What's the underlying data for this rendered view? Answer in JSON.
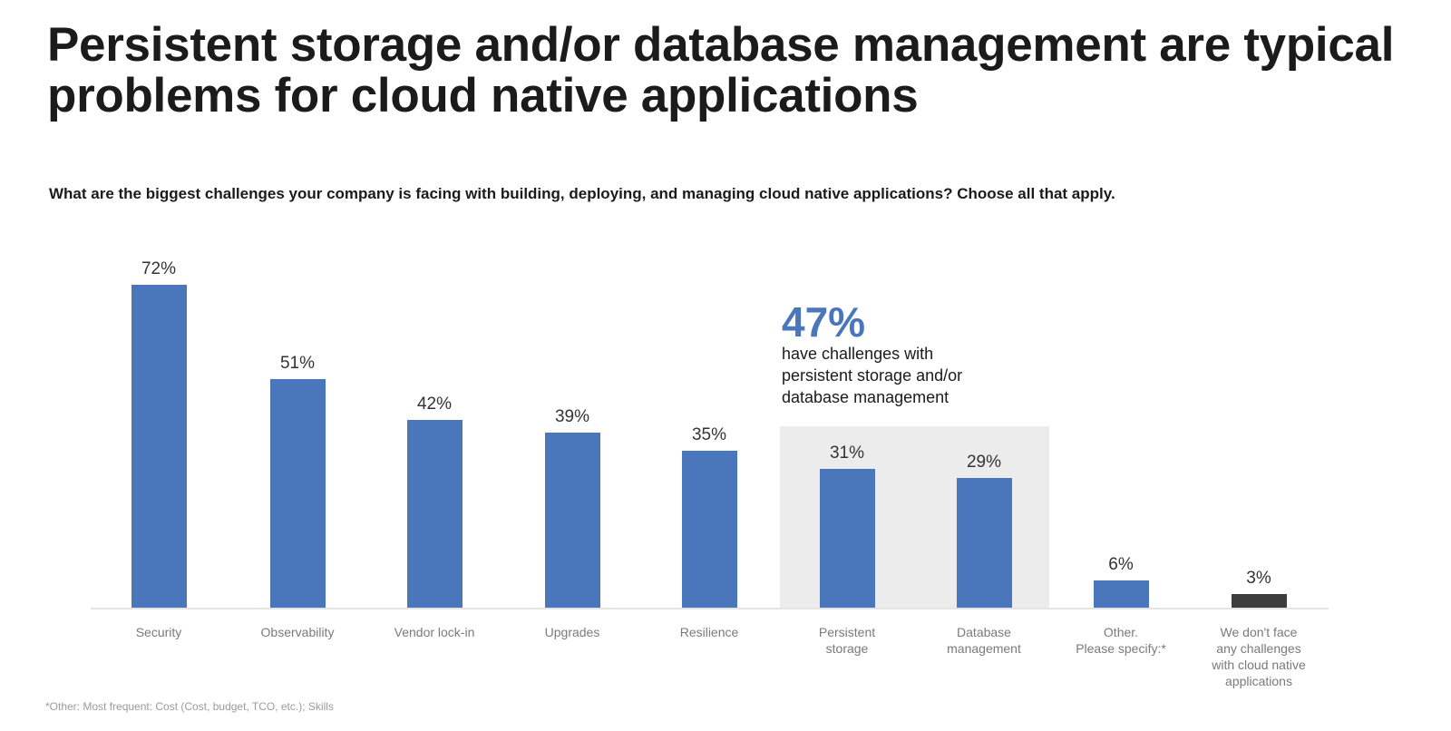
{
  "header": {
    "title": "Persistent storage and/or database management are typical problems for cloud native applications",
    "subtitle": "What are the biggest challenges your company is facing with building, deploying, and managing cloud native applications? Choose all that apply."
  },
  "callout": {
    "value": "47%",
    "text": "have challenges with\npersistent storage and/or\ndatabase management",
    "color": "#4a76bc"
  },
  "footnote": "*Other: Most frequent: Cost (Cost, budget, TCO, etc.); Skills",
  "colors": {
    "bar": "#4a76bc",
    "bar_none": "#3d3d3d",
    "highlight_background": "#ececec"
  },
  "chart_data": {
    "type": "bar",
    "title": "Persistent storage and/or database management are typical problems for cloud native applications",
    "subtitle": "What are the biggest challenges your company is facing with building, deploying, and managing cloud native applications? Choose all that apply.",
    "categories": [
      "Security",
      "Observability",
      "Vendor lock-in",
      "Upgrades",
      "Resilience",
      "Persistent storage",
      "Database management",
      "Other. Please specify:*",
      "We don't face any challenges with cloud native applications"
    ],
    "category_display": [
      "Security",
      "Observability",
      "Vendor lock-in",
      "Upgrades",
      "Resilience",
      "Persistent\nstorage",
      "Database\nmanagement",
      "Other.\nPlease specify:*",
      "We don't face\nany challenges\nwith cloud native\napplications"
    ],
    "values": [
      72,
      51,
      42,
      39,
      35,
      31,
      29,
      6,
      3
    ],
    "value_labels": [
      "72%",
      "51%",
      "42%",
      "39%",
      "35%",
      "31%",
      "29%",
      "6%",
      "3%"
    ],
    "bar_colors": [
      "#4a76bc",
      "#4a76bc",
      "#4a76bc",
      "#4a76bc",
      "#4a76bc",
      "#4a76bc",
      "#4a76bc",
      "#4a76bc",
      "#3d3d3d"
    ],
    "highlighted_categories": [
      "Persistent storage",
      "Database management"
    ],
    "annotation": "47% have challenges with persistent storage and/or database management",
    "xlabel": "",
    "ylabel": "",
    "ylim": [
      0,
      72
    ],
    "grid": false,
    "legend": "none",
    "footnote": "*Other: Most frequent: Cost (Cost, budget, TCO, etc.); Skills"
  }
}
